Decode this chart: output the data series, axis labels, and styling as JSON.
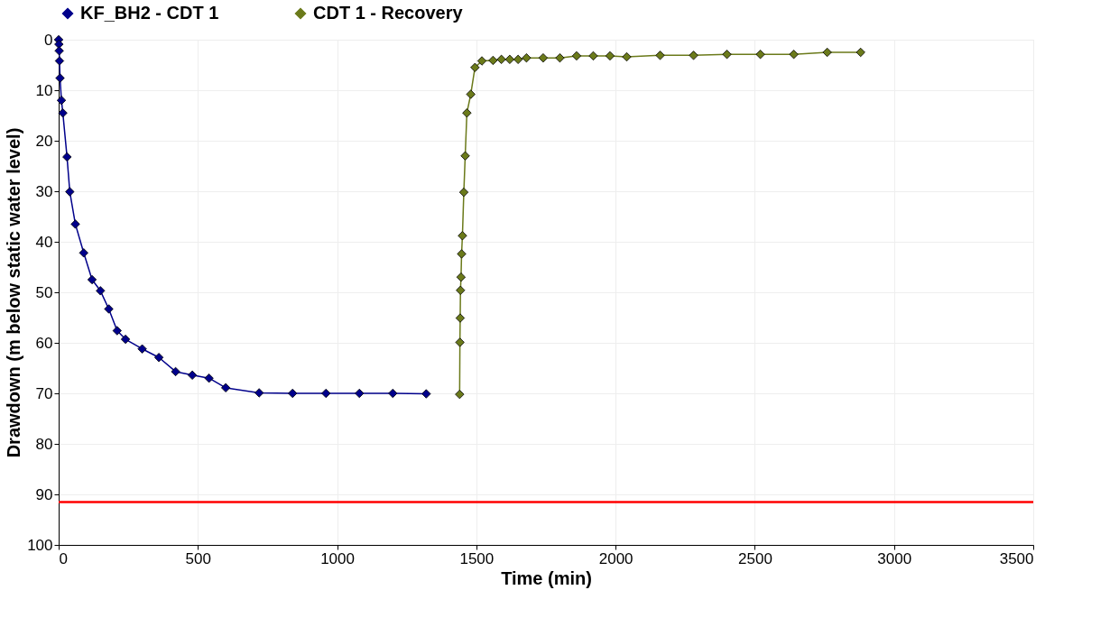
{
  "chart_data": {
    "type": "line",
    "xlabel": "Time (min)",
    "ylabel": "Drawdown (m below static water level)",
    "xlim": [
      0,
      3500
    ],
    "xticks": [
      0,
      500,
      1000,
      1500,
      2000,
      2500,
      3000,
      3500
    ],
    "ylim": [
      100,
      0
    ],
    "yticks": [
      0,
      10,
      20,
      30,
      40,
      50,
      60,
      70,
      80,
      90,
      100
    ],
    "grid": true,
    "legend": "top",
    "marker": "diamond",
    "line_style": "solid",
    "series": [
      {
        "name": "KF_BH2 - CDT 1",
        "color": "#00008b",
        "x": [
          0,
          1,
          2,
          3,
          5,
          10,
          15,
          30,
          40,
          60,
          90,
          120,
          150,
          180,
          210,
          240,
          300,
          360,
          420,
          480,
          540,
          600,
          720,
          840,
          960,
          1080,
          1200,
          1320
        ],
        "values": [
          0,
          0.9,
          2.2,
          4.2,
          7.6,
          12.0,
          14.5,
          23.2,
          30.1,
          36.5,
          42.2,
          47.5,
          49.7,
          53.3,
          57.6,
          59.3,
          61.2,
          62.9,
          65.7,
          66.4,
          67.0,
          68.9,
          69.9,
          70.0,
          70.0,
          70.0,
          70.0,
          70.1
        ]
      },
      {
        "name": "CDT 1 - Recovery",
        "color": "#6b7a1a",
        "x": [
          1440,
          1441,
          1442,
          1443,
          1445,
          1447,
          1450,
          1455,
          1460,
          1466,
          1480,
          1495,
          1520,
          1560,
          1590,
          1620,
          1650,
          1680,
          1740,
          1800,
          1860,
          1920,
          1980,
          2040,
          2160,
          2280,
          2400,
          2520,
          2640,
          2760,
          2880
        ],
        "values": [
          70.2,
          59.9,
          55.1,
          49.6,
          47.0,
          42.4,
          38.8,
          30.2,
          23.0,
          14.5,
          10.8,
          5.5,
          4.2,
          4.1,
          3.9,
          3.9,
          3.9,
          3.6,
          3.6,
          3.6,
          3.2,
          3.2,
          3.2,
          3.4,
          3.1,
          3.1,
          2.9,
          2.9,
          2.9,
          2.5,
          2.5
        ]
      }
    ],
    "ref_lines": [
      {
        "axis": "y",
        "value": 91.5,
        "color": "#ff0000",
        "line_style": "solid"
      }
    ]
  }
}
